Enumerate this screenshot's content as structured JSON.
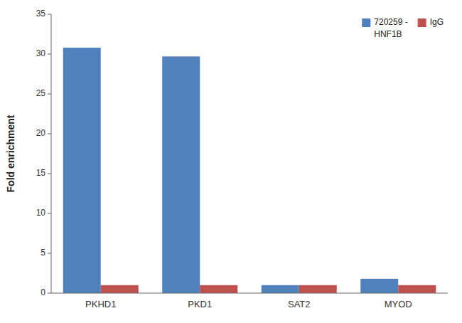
{
  "chart_data": {
    "type": "bar",
    "ylabel": "Fold enrichment",
    "categories": [
      "PKHD1",
      "PKD1",
      "SAT2",
      "MYOD"
    ],
    "series": [
      {
        "name": "720259 - ",
        "color": "#4F81BD",
        "values": [
          30.8,
          29.7,
          1.0,
          1.8
        ]
      },
      {
        "name": "IgG",
        "color": "#C0504D",
        "values": [
          1.0,
          1.0,
          1.0,
          1.0
        ]
      }
    ],
    "annotations": [
      "HNF1B"
    ],
    "ylim": [
      0,
      35
    ],
    "yticks": [
      0,
      5,
      10,
      15,
      20,
      25,
      30,
      35
    ],
    "grid": false,
    "legend": "upper right"
  }
}
